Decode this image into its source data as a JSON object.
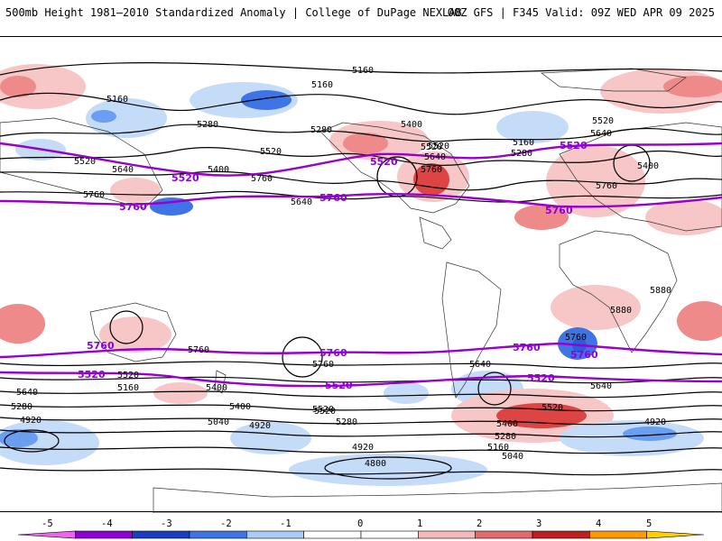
{
  "header": {
    "title": "500mb Height 1981–2010 Standardized Anomaly | College of DuPage NEXLAB",
    "run_info": "00Z GFS | F345 Valid: 09Z WED APR 09 2025"
  },
  "colors": {
    "purple_contour": "#9900cc",
    "contour": "#000000",
    "pos1": "#f7c6c6",
    "pos2": "#ee8a8a",
    "pos3": "#dd4444",
    "neg1": "#c5dcf8",
    "neg2": "#6a9ef0",
    "neg3": "#2c5ae0"
  },
  "map": {
    "height_labels": [
      "5160",
      "5160",
      "5160",
      "5280",
      "5280",
      "5400",
      "5520",
      "5400",
      "5640",
      "5520",
      "5640",
      "5760",
      "5640",
      "5520",
      "5760",
      "5400",
      "5160",
      "5280",
      "5520",
      "5640",
      "5400",
      "5760",
      "5880",
      "5880",
      "5760",
      "5760",
      "5760",
      "5520",
      "5520",
      "5160",
      "5280",
      "4920",
      "5640",
      "5400",
      "5520",
      "5040",
      "4920",
      "5280",
      "4800",
      "4920",
      "5640",
      "5400",
      "5280",
      "5160",
      "5040",
      "5520",
      "5640",
      "4920",
      "5520",
      "5760"
    ],
    "purple_labels": [
      "5520",
      "5520",
      "5760",
      "5520",
      "5760",
      "5760",
      "5760",
      "5760",
      "5760",
      "5760",
      "5520",
      "5520",
      "5520"
    ]
  },
  "colorbar": {
    "tick_labels": [
      "-5",
      "-4",
      "-3",
      "-2",
      "-1",
      "0",
      "1",
      "2",
      "3",
      "4",
      "5"
    ],
    "fills": [
      "#ee66ee",
      "#8e00d4",
      "#1a3ec2",
      "#3f74e6",
      "#a9cdf5",
      "#ffffff",
      "#ffffff",
      "#f6b9b9",
      "#e46a6a",
      "#bf1f1f",
      "#ff9900",
      "#ffd000"
    ]
  }
}
